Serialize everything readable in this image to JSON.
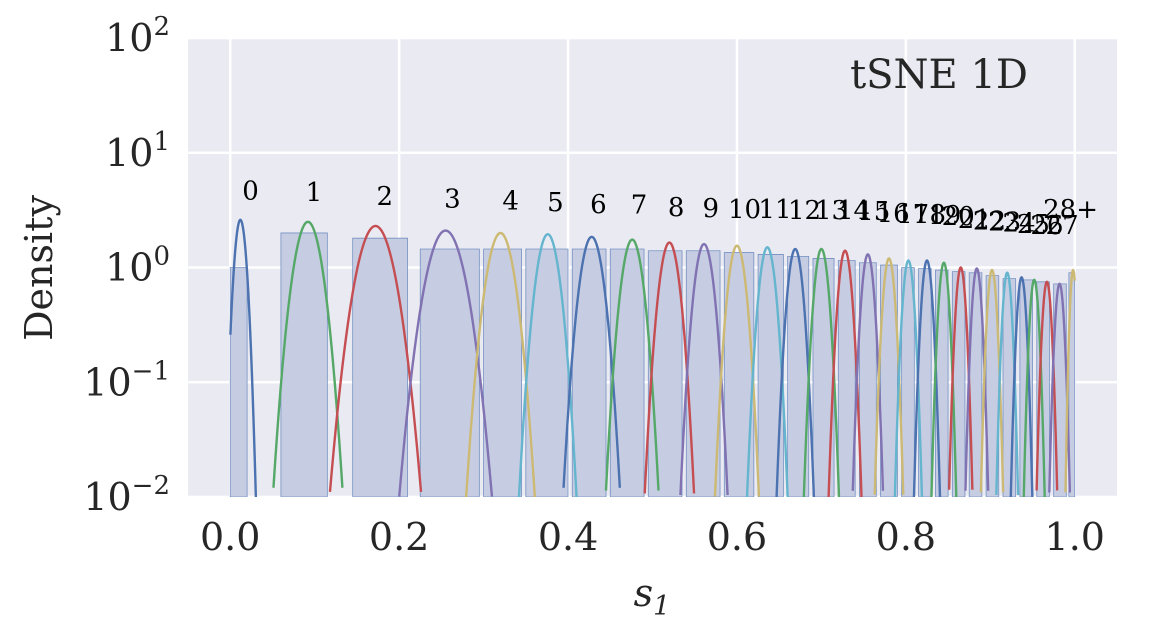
{
  "chart_data": {
    "type": "area",
    "title": "tSNE 1D",
    "xlabel": "s",
    "xlabel_subscript": "1",
    "ylabel": "Density",
    "xlim": [
      -0.05,
      1.05
    ],
    "ylim": [
      0.01,
      100
    ],
    "yscale": "log",
    "grid": true,
    "x_ticks": [
      0.0,
      0.2,
      0.4,
      0.6,
      0.8,
      1.0
    ],
    "x_tick_labels": [
      "0.0",
      "0.2",
      "0.4",
      "0.6",
      "0.8",
      "1.0"
    ],
    "y_ticks": [
      {
        "value": 100,
        "base": "10",
        "exp": "2"
      },
      {
        "value": 10,
        "base": "10",
        "exp": "1"
      },
      {
        "value": 1,
        "base": "10",
        "exp": "0"
      },
      {
        "value": 0.1,
        "base": "10",
        "exp": "−1"
      },
      {
        "value": 0.01,
        "base": "10",
        "exp": "−2"
      }
    ],
    "histogram_color": "#c6cde3",
    "histogram_edge": "#4c72b0",
    "plot_background": "#eaeaf2",
    "histogram": [
      {
        "x0": 0.0,
        "x1": 0.02,
        "h": 1.0
      },
      {
        "x0": 0.06,
        "x1": 0.115,
        "h": 2.0
      },
      {
        "x0": 0.145,
        "x1": 0.21,
        "h": 1.8
      },
      {
        "x0": 0.225,
        "x1": 0.295,
        "h": 1.45
      },
      {
        "x0": 0.3,
        "x1": 0.345,
        "h": 1.45
      },
      {
        "x0": 0.35,
        "x1": 0.4,
        "h": 1.45
      },
      {
        "x0": 0.405,
        "x1": 0.445,
        "h": 1.45
      },
      {
        "x0": 0.45,
        "x1": 0.49,
        "h": 1.45
      },
      {
        "x0": 0.495,
        "x1": 0.535,
        "h": 1.4
      },
      {
        "x0": 0.54,
        "x1": 0.58,
        "h": 1.4
      },
      {
        "x0": 0.585,
        "x1": 0.62,
        "h": 1.35
      },
      {
        "x0": 0.625,
        "x1": 0.655,
        "h": 1.3
      },
      {
        "x0": 0.66,
        "x1": 0.685,
        "h": 1.25
      },
      {
        "x0": 0.69,
        "x1": 0.715,
        "h": 1.2
      },
      {
        "x0": 0.72,
        "x1": 0.74,
        "h": 1.15
      },
      {
        "x0": 0.745,
        "x1": 0.765,
        "h": 1.1
      },
      {
        "x0": 0.77,
        "x1": 0.79,
        "h": 1.05
      },
      {
        "x0": 0.795,
        "x1": 0.81,
        "h": 1.0
      },
      {
        "x0": 0.815,
        "x1": 0.83,
        "h": 0.98
      },
      {
        "x0": 0.835,
        "x1": 0.85,
        "h": 0.95
      },
      {
        "x0": 0.855,
        "x1": 0.87,
        "h": 0.92
      },
      {
        "x0": 0.875,
        "x1": 0.89,
        "h": 0.9
      },
      {
        "x0": 0.895,
        "x1": 0.91,
        "h": 0.85
      },
      {
        "x0": 0.915,
        "x1": 0.93,
        "h": 0.8
      },
      {
        "x0": 0.935,
        "x1": 0.95,
        "h": 0.78
      },
      {
        "x0": 0.955,
        "x1": 0.97,
        "h": 0.75
      },
      {
        "x0": 0.975,
        "x1": 0.99,
        "h": 0.72
      },
      {
        "x0": 0.993,
        "x1": 1.0,
        "h": 0.9
      }
    ],
    "series": [
      {
        "name": "0",
        "mu": 0.012,
        "peak": 2.6,
        "sigma": 0.0055,
        "color": "#4c72b0"
      },
      {
        "name": "1",
        "mu": 0.092,
        "peak": 2.5,
        "sigma": 0.0125,
        "color": "#55a868"
      },
      {
        "name": "2",
        "mu": 0.172,
        "peak": 2.3,
        "sigma": 0.0165,
        "color": "#c44e52"
      },
      {
        "name": "3",
        "mu": 0.255,
        "peak": 2.1,
        "sigma": 0.0168,
        "color": "#8172b2"
      },
      {
        "name": "4",
        "mu": 0.32,
        "peak": 2.0,
        "sigma": 0.0125,
        "color": "#ccb974"
      },
      {
        "name": "5",
        "mu": 0.376,
        "peak": 1.95,
        "sigma": 0.0105,
        "color": "#64b5cd"
      },
      {
        "name": "6",
        "mu": 0.428,
        "peak": 1.85,
        "sigma": 0.0105,
        "color": "#4c72b0"
      },
      {
        "name": "7",
        "mu": 0.476,
        "peak": 1.75,
        "sigma": 0.0098,
        "color": "#55a868"
      },
      {
        "name": "8",
        "mu": 0.52,
        "peak": 1.65,
        "sigma": 0.0092,
        "color": "#c44e52"
      },
      {
        "name": "9",
        "mu": 0.561,
        "peak": 1.6,
        "sigma": 0.0088,
        "color": "#8172b2"
      },
      {
        "name": "10",
        "mu": 0.6,
        "peak": 1.55,
        "sigma": 0.0082,
        "color": "#ccb974"
      },
      {
        "name": "11",
        "mu": 0.636,
        "peak": 1.5,
        "sigma": 0.0076,
        "color": "#64b5cd"
      },
      {
        "name": "12",
        "mu": 0.669,
        "peak": 1.45,
        "sigma": 0.007,
        "color": "#4c72b0"
      },
      {
        "name": "13",
        "mu": 0.7,
        "peak": 1.45,
        "sigma": 0.0066,
        "color": "#55a868"
      },
      {
        "name": "14",
        "mu": 0.728,
        "peak": 1.4,
        "sigma": 0.0062,
        "color": "#c44e52"
      },
      {
        "name": "15",
        "mu": 0.755,
        "peak": 1.3,
        "sigma": 0.0058,
        "color": "#8172b2"
      },
      {
        "name": "16",
        "mu": 0.78,
        "peak": 1.2,
        "sigma": 0.0055,
        "color": "#ccb974"
      },
      {
        "name": "17",
        "mu": 0.803,
        "peak": 1.15,
        "sigma": 0.0052,
        "color": "#64b5cd"
      },
      {
        "name": "18",
        "mu": 0.825,
        "peak": 1.15,
        "sigma": 0.005,
        "color": "#4c72b0"
      },
      {
        "name": "19",
        "mu": 0.845,
        "peak": 1.1,
        "sigma": 0.0048,
        "color": "#55a868"
      },
      {
        "name": "20",
        "mu": 0.865,
        "peak": 1.0,
        "sigma": 0.0046,
        "color": "#c44e52"
      },
      {
        "name": "21",
        "mu": 0.884,
        "peak": 0.98,
        "sigma": 0.0045,
        "color": "#8172b2"
      },
      {
        "name": "22",
        "mu": 0.902,
        "peak": 0.95,
        "sigma": 0.0044,
        "color": "#ccb974"
      },
      {
        "name": "23",
        "mu": 0.92,
        "peak": 0.9,
        "sigma": 0.0043,
        "color": "#64b5cd"
      },
      {
        "name": "24",
        "mu": 0.937,
        "peak": 0.82,
        "sigma": 0.0043,
        "color": "#4c72b0"
      },
      {
        "name": "25",
        "mu": 0.952,
        "peak": 0.78,
        "sigma": 0.0042,
        "color": "#55a868"
      },
      {
        "name": "26",
        "mu": 0.967,
        "peak": 0.75,
        "sigma": 0.0042,
        "color": "#c44e52"
      },
      {
        "name": "27",
        "mu": 0.982,
        "peak": 0.72,
        "sigma": 0.0042,
        "color": "#8172b2"
      },
      {
        "name": "28+",
        "mu": 0.998,
        "peak": 0.95,
        "sigma": 0.003,
        "color": "#ccb974"
      }
    ],
    "curve_labels": [
      {
        "text": "0",
        "x": 0.024,
        "y": 3.9
      },
      {
        "text": "1",
        "x": 0.099,
        "y": 3.8
      },
      {
        "text": "2",
        "x": 0.183,
        "y": 3.5
      },
      {
        "text": "3",
        "x": 0.263,
        "y": 3.35
      },
      {
        "text": "4",
        "x": 0.332,
        "y": 3.2
      },
      {
        "text": "5",
        "x": 0.385,
        "y": 3.1
      },
      {
        "text": "6",
        "x": 0.436,
        "y": 3.0
      },
      {
        "text": "7",
        "x": 0.484,
        "y": 2.95
      },
      {
        "text": "8",
        "x": 0.528,
        "y": 2.8
      },
      {
        "text": "9",
        "x": 0.569,
        "y": 2.75
      },
      {
        "text": "10",
        "x": 0.609,
        "y": 2.7
      },
      {
        "text": "11",
        "x": 0.645,
        "y": 2.7
      },
      {
        "text": "12",
        "x": 0.68,
        "y": 2.65
      },
      {
        "text": "13",
        "x": 0.712,
        "y": 2.65
      },
      {
        "text": "14",
        "x": 0.738,
        "y": 2.65
      },
      {
        "text": "15",
        "x": 0.762,
        "y": 2.6
      },
      {
        "text": "16",
        "x": 0.785,
        "y": 2.5
      },
      {
        "text": "17",
        "x": 0.808,
        "y": 2.45
      },
      {
        "text": "18",
        "x": 0.828,
        "y": 2.45
      },
      {
        "text": "19",
        "x": 0.846,
        "y": 2.4
      },
      {
        "text": "20",
        "x": 0.862,
        "y": 2.35
      },
      {
        "text": "21",
        "x": 0.881,
        "y": 2.2
      },
      {
        "text": "22",
        "x": 0.899,
        "y": 2.15
      },
      {
        "text": "23",
        "x": 0.917,
        "y": 2.1
      },
      {
        "text": "24",
        "x": 0.934,
        "y": 2.05
      },
      {
        "text": "25",
        "x": 0.951,
        "y": 2.0
      },
      {
        "text": "26",
        "x": 0.967,
        "y": 1.95
      },
      {
        "text": "27",
        "x": 0.985,
        "y": 1.95
      },
      {
        "text": "28+",
        "x": 0.995,
        "y": 2.7
      }
    ]
  }
}
